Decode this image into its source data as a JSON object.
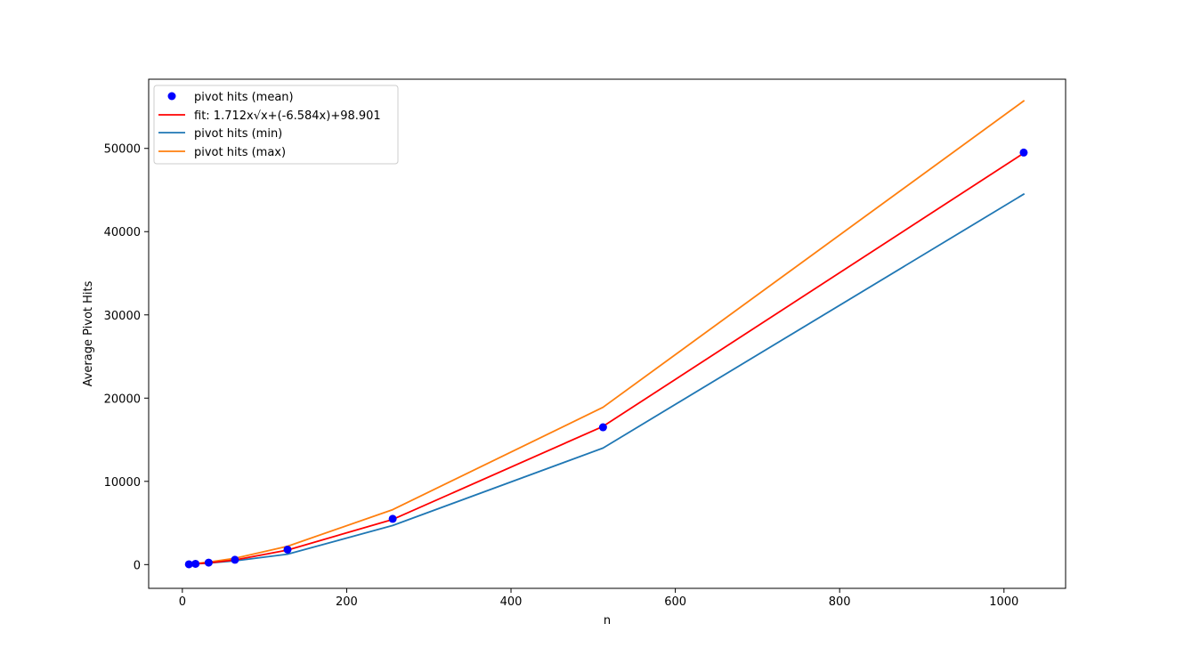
{
  "chart_data": {
    "type": "line",
    "xlabel": "n",
    "ylabel": "Average Pivot Hits",
    "xlim": [
      -41,
      1075
    ],
    "ylim": [
      -2853,
      58312
    ],
    "x_ticks": [
      0,
      200,
      400,
      600,
      800,
      1000
    ],
    "x_tick_labels": [
      "0",
      "200",
      "400",
      "600",
      "800",
      "1000"
    ],
    "y_ticks": [
      0,
      10000,
      20000,
      30000,
      40000,
      50000
    ],
    "y_tick_labels": [
      "0",
      "10000",
      "20000",
      "30000",
      "40000",
      "50000"
    ],
    "grid": false,
    "legend_position": "upper left",
    "x": [
      8,
      16,
      32,
      64,
      128,
      256,
      512,
      1024
    ],
    "series": [
      {
        "name": "pivot hits (mean)",
        "kind": "scatter",
        "color": "#0000ff",
        "values": [
          40,
          90,
          240,
          580,
          1800,
          5500,
          16500,
          49500
        ]
      },
      {
        "name": "fit: 1.712x√x+(-6.584x)+98.901",
        "kind": "line",
        "color": "#ff0000",
        "values": [
          86,
          104,
          199,
          555,
          1743,
          5423,
          16605,
          49431
        ]
      },
      {
        "name": "pivot hits (min)",
        "kind": "line",
        "color": "#1f77b4",
        "values": [
          30,
          70,
          180,
          450,
          1250,
          4700,
          14000,
          44500
        ]
      },
      {
        "name": "pivot hits (max)",
        "kind": "line",
        "color": "#ff7f0e",
        "values": [
          55,
          120,
          300,
          750,
          2200,
          6600,
          18900,
          55700
        ]
      }
    ]
  }
}
